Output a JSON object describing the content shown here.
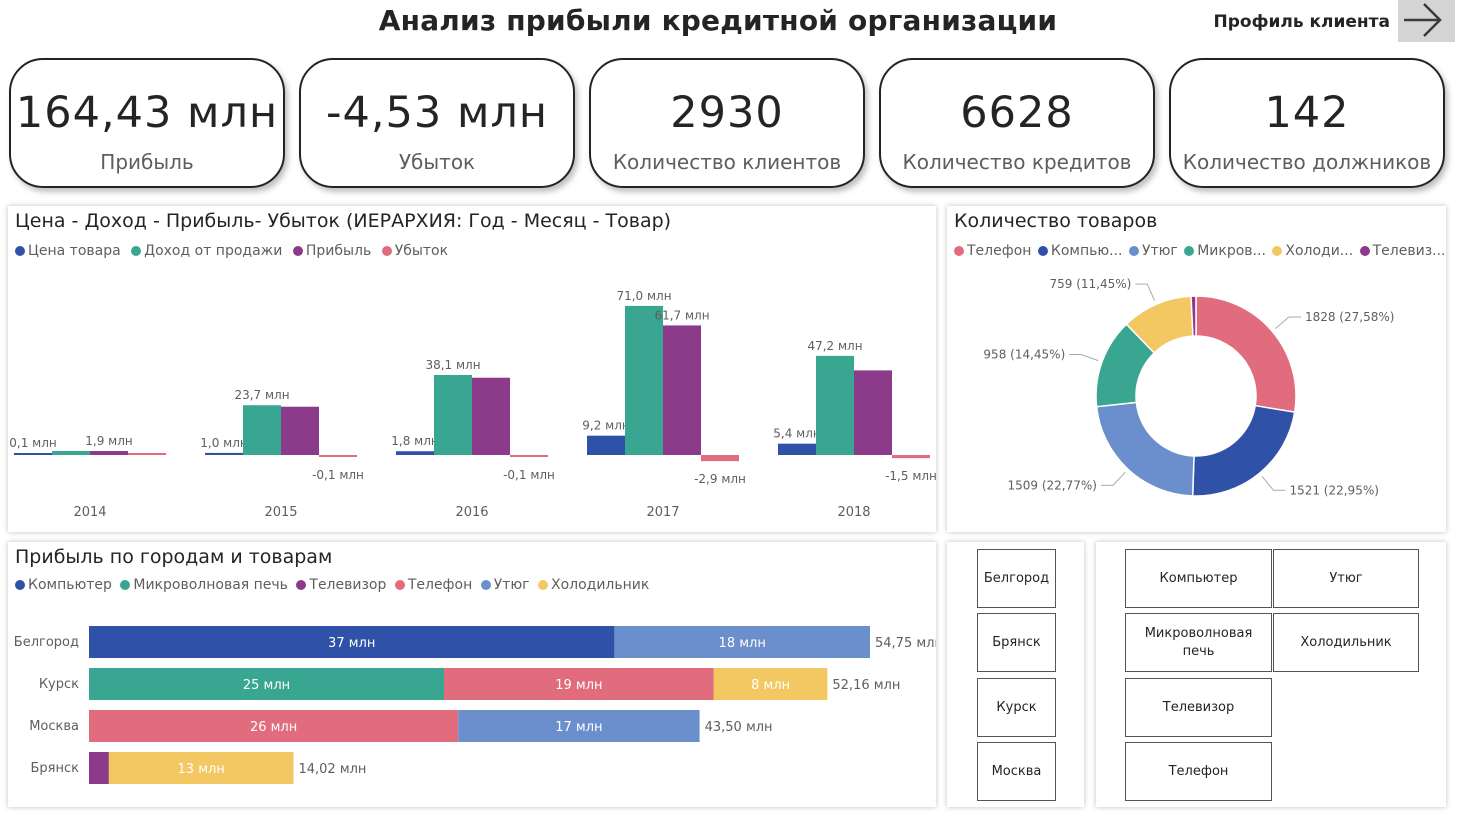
{
  "header": {
    "title": "Анализ прибыли кредитной организации",
    "nav_label": "Профиль клиента",
    "nav_icon": "arrow-right-icon"
  },
  "kpis": [
    {
      "value": "164,43 млн",
      "label": "Прибыль"
    },
    {
      "value": "-4,53 млн",
      "label": "Убыток"
    },
    {
      "value": "2930",
      "label": "Количество клиентов"
    },
    {
      "value": "6628",
      "label": "Количество кредитов"
    },
    {
      "value": "142",
      "label": "Количество должников"
    }
  ],
  "colors": {
    "blue": "#2f52a8",
    "teal": "#38a691",
    "purple": "#8c3b8a",
    "pink": "#e06c7d",
    "lightblue": "#6a8fcc",
    "yellow": "#f3c762"
  },
  "chart_data": [
    {
      "type": "bar",
      "title": "Цена - Доход - Прибыль- Убыток  (ИЕРАРХИЯ: Год - Месяц - Товар)",
      "categories": [
        "2014",
        "2015",
        "2016",
        "2017",
        "2018"
      ],
      "series": [
        {
          "name": "Цена товара",
          "color": "#2f52a8",
          "values": [
            0.1,
            1.0,
            1.8,
            9.2,
            5.4
          ],
          "labels": [
            "0,1 млн",
            "1,0 млн",
            "1,8 млн",
            "9,2 млн",
            "5,4 млн"
          ]
        },
        {
          "name": "Доход от продажи",
          "color": "#38a691",
          "values": [
            1.9,
            23.7,
            38.1,
            71.0,
            47.2
          ],
          "labels": [
            "",
            "23,7 млн",
            "38,1 млн",
            "71,0 млн",
            "47,2 млн"
          ]
        },
        {
          "name": "Прибыль",
          "color": "#8c3b8a",
          "values": [
            1.9,
            23.0,
            36.8,
            61.7,
            40.3
          ],
          "labels": [
            "1,9 млн",
            "",
            "",
            "61,7 млн",
            ""
          ]
        },
        {
          "name": "Убыток",
          "color": "#e06c7d",
          "values": [
            0,
            -0.1,
            -0.1,
            -2.9,
            -1.5
          ],
          "labels": [
            "",
            "-0,1 млн",
            "-0,1 млн",
            "-2,9 млн",
            "-1,5 млн"
          ]
        }
      ],
      "ylim": [
        -3,
        71
      ]
    },
    {
      "type": "pie",
      "title": "Количество товаров",
      "legend": [
        "Телефон",
        "Компью...",
        "Утюг",
        "Микров...",
        "Холоди...",
        "Телевиз..."
      ],
      "slices": [
        {
          "name": "Телефон",
          "value": 1828,
          "label": "1828 (27,58%)",
          "color": "#e06c7d"
        },
        {
          "name": "Компьютер",
          "value": 1521,
          "label": "1521 (22,95%)",
          "color": "#2f52a8"
        },
        {
          "name": "Утюг",
          "value": 1509,
          "label": "1509 (22,77%)",
          "color": "#6a8fcc"
        },
        {
          "name": "Микроволновая печь",
          "value": 958,
          "label": "958 (14,45%)",
          "color": "#38a691"
        },
        {
          "name": "Холодильник",
          "value": 759,
          "label": "759 (11,45%)",
          "color": "#f3c762"
        },
        {
          "name": "Телевизор",
          "value": 53,
          "label": "",
          "color": "#8c3b8a"
        }
      ]
    },
    {
      "type": "bar",
      "orientation": "horizontal-stacked",
      "title": "Прибыль по городам и товарам",
      "legend": [
        {
          "name": "Компьютер",
          "color": "#2f52a8"
        },
        {
          "name": "Микроволновая печь",
          "color": "#38a691"
        },
        {
          "name": "Телевизор",
          "color": "#8c3b8a"
        },
        {
          "name": "Телефон",
          "color": "#e06c7d"
        },
        {
          "name": "Утюг",
          "color": "#6a8fcc"
        },
        {
          "name": "Холодильник",
          "color": "#f3c762"
        }
      ],
      "rows": [
        {
          "city": "Белгород",
          "total_label": "54,75 млн",
          "segments": [
            {
              "product": "Компьютер",
              "value": 37,
              "label": "37 млн",
              "color": "#2f52a8"
            },
            {
              "product": "Утюг",
              "value": 18,
              "label": "18 млн",
              "color": "#6a8fcc"
            }
          ]
        },
        {
          "city": "Курск",
          "total_label": "52,16 млн",
          "segments": [
            {
              "product": "Микроволновая печь",
              "value": 25,
              "label": "25 млн",
              "color": "#38a691"
            },
            {
              "product": "Телефон",
              "value": 19,
              "label": "19 млн",
              "color": "#e06c7d"
            },
            {
              "product": "Холодильник",
              "value": 8,
              "label": "8 млн",
              "color": "#f3c762"
            }
          ]
        },
        {
          "city": "Москва",
          "total_label": "43,50 млн",
          "segments": [
            {
              "product": "Телефон",
              "value": 26,
              "label": "26 млн",
              "color": "#e06c7d"
            },
            {
              "product": "Утюг",
              "value": 17,
              "label": "17 млн",
              "color": "#6a8fcc"
            }
          ]
        },
        {
          "city": "Брянск",
          "total_label": "14,02 млн",
          "segments": [
            {
              "product": "Телевизор",
              "value": 1.4,
              "label": "",
              "color": "#8c3b8a"
            },
            {
              "product": "Холодильник",
              "value": 13,
              "label": "13 млн",
              "color": "#f3c762"
            }
          ]
        }
      ],
      "xmax": 55
    }
  ],
  "city_slicer": [
    "Белгород",
    "Брянск",
    "Курск",
    "Москва"
  ],
  "product_slicer": [
    "Компьютер",
    "Утюг",
    "Микроволновая печь",
    "Холодильник",
    "Телевизор",
    "Телефон"
  ]
}
